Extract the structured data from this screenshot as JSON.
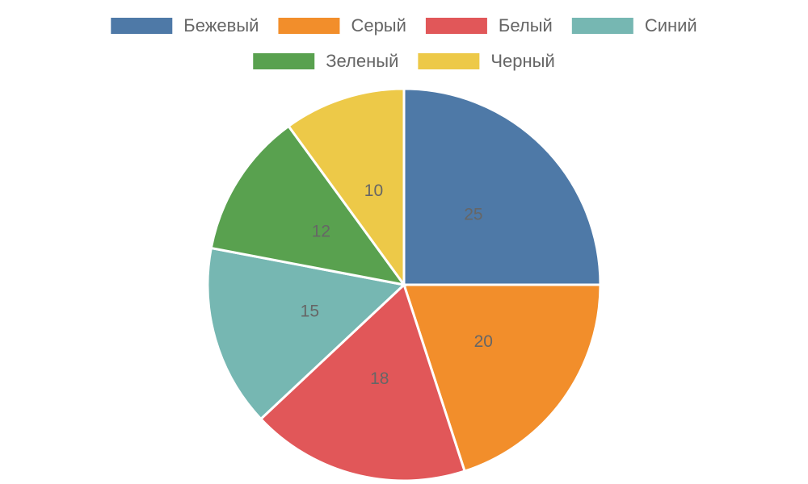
{
  "chart_data": {
    "type": "pie",
    "categories": [
      "Бежевый",
      "Серый",
      "Белый",
      "Синий",
      "Зеленый",
      "Черный"
    ],
    "values": [
      25,
      20,
      18,
      15,
      12,
      10
    ],
    "colors": [
      "#4e79a7",
      "#f28e2b",
      "#e15759",
      "#76b7b2",
      "#59a14f",
      "#edc948"
    ],
    "legend": "top"
  }
}
